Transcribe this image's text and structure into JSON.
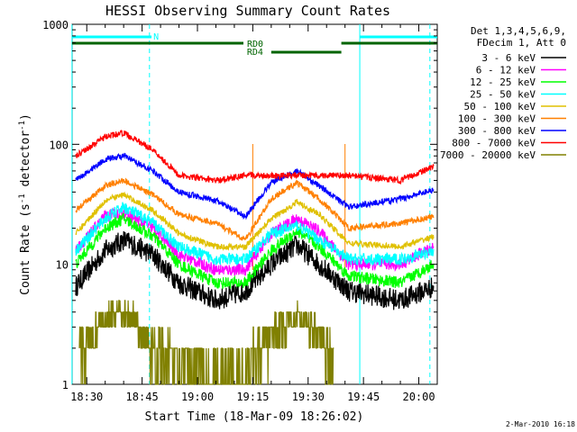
{
  "chart_data": {
    "type": "line",
    "title": "HESSI Observing Summary Count Rates",
    "xlabel": "Start Time (18-Mar-09 18:26:02)",
    "ylabel": "Count Rate (s-1 detector-1)",
    "ylabel_parts": {
      "pre": "Count Rate (s",
      "sup1": "-1",
      "mid": " detector",
      "sup2": "-1",
      "post": ")"
    },
    "y_scale": "log",
    "ylim": [
      1,
      1000
    ],
    "xlim": [
      "18:26:02",
      "20:05:00"
    ],
    "x_ticks": [
      "18:30",
      "18:45",
      "19:00",
      "19:15",
      "19:30",
      "19:45",
      "20:00"
    ],
    "y_ticks": [
      "1",
      "10",
      "100",
      "1000"
    ],
    "footer": "2-Mar-2010 16:18",
    "legend": {
      "placement": "top-right",
      "header": [
        "Det 1,3,4,5,6,9,",
        "FDecim 1, Att 0"
      ]
    },
    "series": [
      {
        "name": "3 - 6 keV",
        "color": "#000000",
        "x": [
          "18:27",
          "18:35",
          "18:40",
          "18:48",
          "18:55",
          "19:05",
          "19:13",
          "19:20",
          "19:27",
          "19:33",
          "19:41",
          "19:55",
          "20:04"
        ],
        "y": [
          6.5,
          13,
          16,
          12,
          7,
          5,
          6,
          10,
          14.5,
          10,
          6,
          5,
          6.5
        ]
      },
      {
        "name": "6 - 12 keV",
        "color": "#ff00ff",
        "x": [
          "18:27",
          "18:35",
          "18:40",
          "18:48",
          "18:55",
          "19:05",
          "19:13",
          "19:20",
          "19:27",
          "19:33",
          "19:41",
          "19:55",
          "20:04"
        ],
        "y": [
          13,
          25,
          27,
          20,
          12,
          9,
          9,
          18,
          24,
          19,
          10,
          10,
          14
        ]
      },
      {
        "name": "12 - 25 keV",
        "color": "#00ff00",
        "x": [
          "18:27",
          "18:35",
          "18:40",
          "18:48",
          "18:55",
          "19:05",
          "19:13",
          "19:20",
          "19:27",
          "19:33",
          "19:41",
          "19:55",
          "20:04"
        ],
        "y": [
          10,
          20,
          24,
          17,
          10,
          7,
          7,
          13,
          19,
          14,
          8,
          7,
          10
        ]
      },
      {
        "name": "25 - 50 keV",
        "color": "#00ffff",
        "x": [
          "18:27",
          "18:35",
          "18:40",
          "18:48",
          "18:55",
          "19:05",
          "19:13",
          "19:20",
          "19:27",
          "19:33",
          "19:41",
          "19:55",
          "20:04"
        ],
        "y": [
          13,
          24,
          30,
          22,
          14,
          11,
          11,
          18,
          21,
          16,
          11,
          11,
          13
        ]
      },
      {
        "name": "50 - 100 keV",
        "color": "#e0c000",
        "x": [
          "18:27",
          "18:35",
          "18:40",
          "18:48",
          "18:55",
          "19:05",
          "19:13",
          "19:20",
          "19:27",
          "19:33",
          "19:41",
          "19:55",
          "20:04"
        ],
        "y": [
          18,
          34,
          38,
          28,
          18,
          14,
          14,
          24,
          33,
          26,
          15,
          14,
          17
        ]
      },
      {
        "name": "100 - 300 keV",
        "color": "#ff8000",
        "x": [
          "18:27",
          "18:35",
          "18:40",
          "18:48",
          "18:55",
          "19:05",
          "19:13",
          "19:20",
          "19:27",
          "19:33",
          "19:41",
          "19:55",
          "20:04"
        ],
        "y": [
          28,
          45,
          50,
          38,
          26,
          22,
          16,
          35,
          48,
          35,
          20,
          22,
          25
        ]
      },
      {
        "name": "300 - 800 keV",
        "color": "#0000ff",
        "x": [
          "18:27",
          "18:35",
          "18:40",
          "18:48",
          "18:55",
          "19:05",
          "19:13",
          "19:20",
          "19:27",
          "19:33",
          "19:41",
          "19:55",
          "20:04"
        ],
        "y": [
          50,
          75,
          80,
          60,
          40,
          34,
          25,
          48,
          60,
          45,
          30,
          35,
          42
        ]
      },
      {
        "name": "800 - 7000 keV",
        "color": "#ff0000",
        "x": [
          "18:27",
          "18:35",
          "18:40",
          "18:48",
          "18:55",
          "19:05",
          "19:13",
          "19:41",
          "19:55",
          "20:04"
        ],
        "y": [
          80,
          115,
          125,
          90,
          55,
          50,
          55,
          55,
          50,
          65
        ]
      },
      {
        "name": "7000 - 20000 keV",
        "color": "#808000",
        "x": [
          "18:28",
          "18:33",
          "18:38",
          "18:43",
          "18:48",
          "19:10",
          "19:17",
          "19:22",
          "19:27",
          "19:32",
          "19:37"
        ],
        "y": [
          2,
          3,
          4,
          3.5,
          2,
          1,
          2,
          3,
          4,
          3,
          1.5
        ]
      }
    ],
    "annotations": {
      "N": {
        "label": "N",
        "color": "#00ffff",
        "start": "18:26",
        "end": "18:50"
      },
      "N_right": {
        "color": "#00ffff",
        "start": "19:44",
        "end": "20:05"
      },
      "RD0_bars": [
        {
          "start": "18:26",
          "end": "19:16",
          "color": "#006400"
        },
        {
          "label": "RD0",
          "color": "#006400",
          "start": "19:39",
          "end": "20:05"
        }
      ],
      "RD4": {
        "label": "RD4",
        "color": "#006400",
        "start": "19:20",
        "end": "19:39"
      }
    },
    "vlines_solid": [
      "18:26",
      "19:44"
    ],
    "vlines_dashed": [
      "18:47",
      "20:03"
    ],
    "vlines_orange": [
      "19:15",
      "19:40"
    ]
  }
}
